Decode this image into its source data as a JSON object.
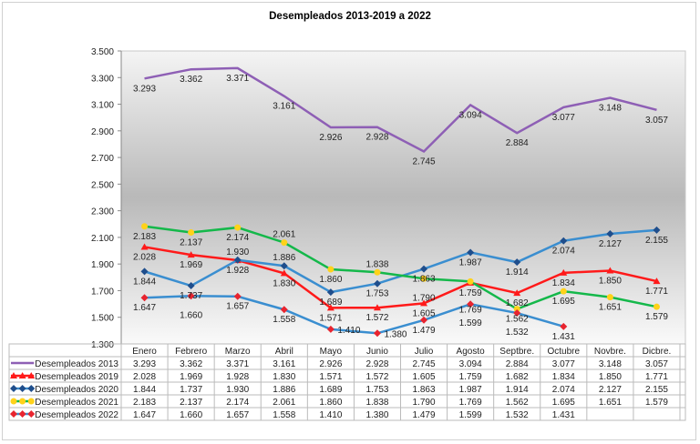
{
  "chart_data": {
    "type": "line",
    "title": "Desempleados 2013-2019 a 2022",
    "xlabel": "",
    "ylabel": "",
    "ylim": [
      1300,
      3500
    ],
    "yticks": [
      1300,
      1500,
      1700,
      1900,
      2100,
      2300,
      2500,
      2700,
      2900,
      3100,
      3300,
      3500
    ],
    "ytick_labels": [
      "1.300",
      "1.500",
      "1.700",
      "1.900",
      "2.100",
      "2.300",
      "2.500",
      "2.700",
      "2.900",
      "3.100",
      "3.300",
      "3.500"
    ],
    "grid": false,
    "legend": "data-table-below",
    "categories": [
      "Enero",
      "Febrero",
      "Marzo",
      "Abril",
      "Mayo",
      "Junio",
      "Julio",
      "Agosto",
      "Septbre.",
      "Octubre",
      "Novbre.",
      "Dicbre."
    ],
    "series": [
      {
        "name": "Desempleados 2013",
        "color": "#8e5fb5",
        "marker": "none",
        "marker_color": "",
        "values": [
          3293,
          3362,
          3371,
          3161,
          2926,
          2928,
          2745,
          3094,
          2884,
          3077,
          3148,
          3057
        ],
        "labels": [
          "3.293",
          "3.362",
          "3.371",
          "3.161",
          "2.926",
          "2.928",
          "2.745",
          "3.094",
          "2.884",
          "3.077",
          "3.148",
          "3.057"
        ]
      },
      {
        "name": "Desempleados 2019",
        "color": "#ff1a1a",
        "marker": "triangle",
        "marker_color": "#ff1a1a",
        "values": [
          2028,
          1969,
          1928,
          1830,
          1571,
          1572,
          1605,
          1759,
          1682,
          1834,
          1850,
          1771
        ],
        "labels": [
          "2.028",
          "1.969",
          "1.928",
          "1.830",
          "1.571",
          "1.572",
          "1.605",
          "1.759",
          "1.682",
          "1.834",
          "1.850",
          "1.771"
        ]
      },
      {
        "name": "Desempleados 2020",
        "color": "#3a8ed0",
        "marker": "diamond",
        "marker_color": "#1f4e8c",
        "values": [
          1844,
          1737,
          1930,
          1886,
          1689,
          1753,
          1863,
          1987,
          1914,
          2074,
          2127,
          2155
        ],
        "labels": [
          "1.844",
          "1.737",
          "1.930",
          "1.886",
          "1.689",
          "1.753",
          "1.863",
          "1.987",
          "1.914",
          "2.074",
          "2.127",
          "2.155"
        ]
      },
      {
        "name": "Desempleados 2021",
        "color": "#14b84a",
        "marker": "circle",
        "marker_color": "#ffd21a",
        "values": [
          2183,
          2137,
          2174,
          2061,
          1860,
          1838,
          1790,
          1769,
          1562,
          1695,
          1651,
          1579
        ],
        "labels": [
          "2.183",
          "2.137",
          "2.174",
          "2.061",
          "1.860",
          "1.838",
          "1.790",
          "1.769",
          "1.562",
          "1.695",
          "1.651",
          "1.579"
        ]
      },
      {
        "name": "Desempleados 2022",
        "color": "#3a8ed0",
        "marker": "diamond",
        "marker_color": "#e8242f",
        "values": [
          1647,
          1660,
          1657,
          1558,
          1410,
          1380,
          1479,
          1599,
          1532,
          1431,
          null,
          null
        ],
        "labels": [
          "1.647",
          "1.660",
          "1.657",
          "1.558",
          "1.410",
          "1.380",
          "1.479",
          "1.599",
          "1.532",
          "1.431",
          "",
          ""
        ]
      }
    ]
  }
}
